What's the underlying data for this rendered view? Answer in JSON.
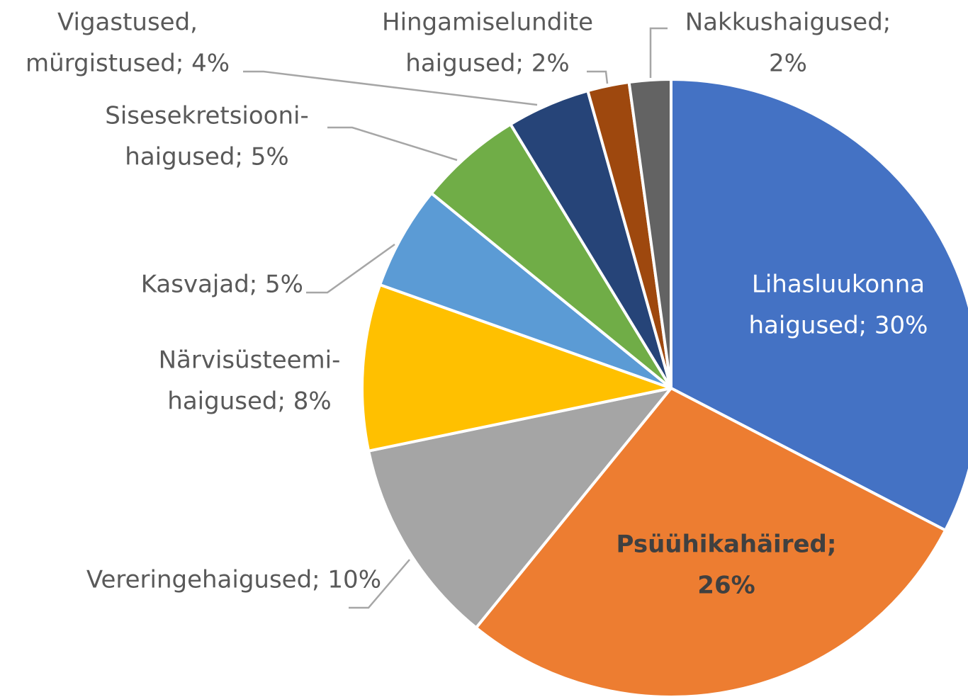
{
  "chart_data": {
    "type": "pie",
    "values": [
      30,
      26,
      10,
      8,
      5,
      5,
      4,
      2,
      2
    ],
    "value_labels": [
      [
        "Lihasluukonna",
        "haigused; 30%"
      ],
      [
        "Psüühikahäired;",
        "26%"
      ],
      [
        "Vereringehaigused; 10%"
      ],
      [
        "Närvisüsteemi-",
        "haigused; 8%"
      ],
      [
        "Kasvajad; 5%"
      ],
      [
        "Sisesekretsiooni-",
        "haigused; 5%"
      ],
      [
        "Vigastused,",
        "mürgistused; 4%"
      ],
      [
        "Hingamiselundite",
        "haigused; 2%"
      ],
      [
        "Nakkushaigused;",
        "2%"
      ]
    ],
    "colors": [
      "#4472c4",
      "#ed7d31",
      "#a5a5a5",
      "#ffc000",
      "#5b9bd5",
      "#70ad47",
      "#264478",
      "#9e480e",
      "#636363"
    ]
  }
}
